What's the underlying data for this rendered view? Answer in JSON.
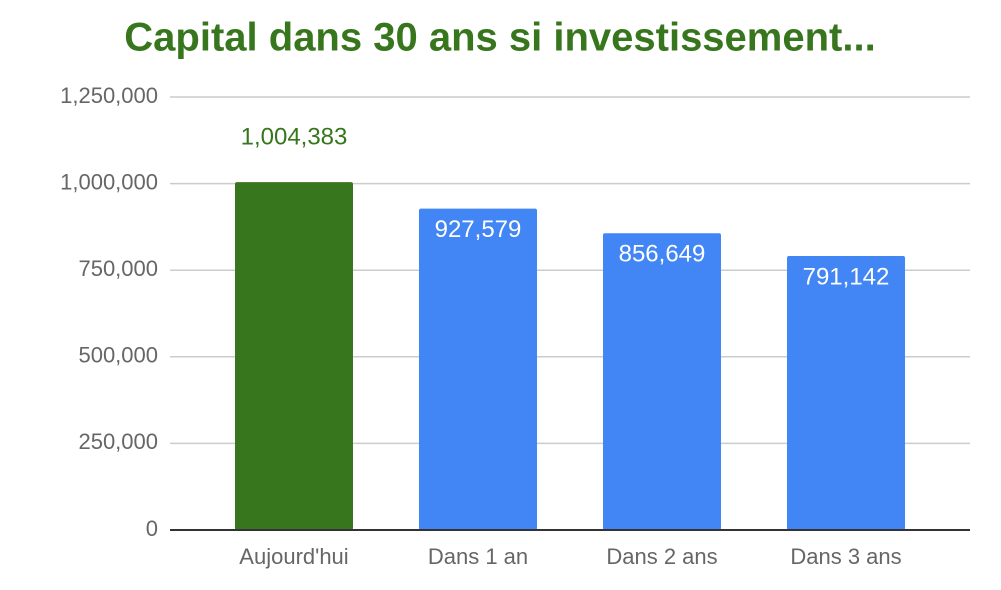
{
  "chart_data": {
    "type": "bar",
    "title": "Capital dans 30 ans si investissement...",
    "categories": [
      "Aujourd'hui",
      "Dans 1 an",
      "Dans 2 ans",
      "Dans 3 ans"
    ],
    "values": [
      1004383,
      927579,
      856649,
      791142
    ],
    "value_labels": [
      "1,004,383",
      "927,579",
      "856,649",
      "791,142"
    ],
    "colors": [
      "#38761d",
      "#4285f4",
      "#4285f4",
      "#4285f4"
    ],
    "value_label_colors": [
      "#38761d",
      "#ffffff",
      "#ffffff",
      "#ffffff"
    ],
    "ylim": [
      0,
      1250000
    ],
    "yticks": [
      0,
      {
        "value": 250000,
        "label": "250,000"
      },
      {
        "value": 500000,
        "label": "500,000"
      },
      {
        "value": 750000,
        "label": "750,000"
      },
      {
        "value": 1000000,
        "label": "1,000,000"
      },
      {
        "value": 1250000,
        "label": "1,250,000"
      }
    ],
    "grid": true
  }
}
